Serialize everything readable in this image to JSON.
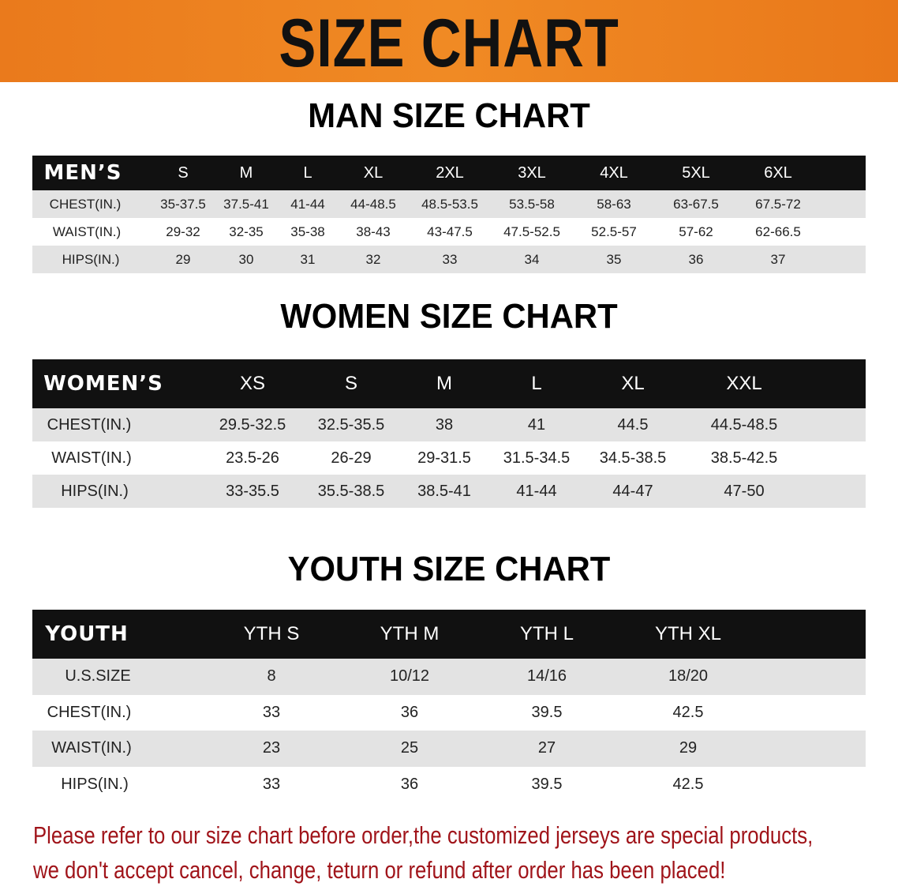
{
  "banner_title": "SIZE CHART",
  "men": {
    "title": "MAN SIZE CHART",
    "header": [
      "MEN’S",
      "S",
      "M",
      "L",
      "XL",
      "2XL",
      "3XL",
      "4XL",
      "5XL",
      "6XL"
    ],
    "rows": [
      [
        "CHEST(IN.)",
        "35-37.5",
        "37.5-41",
        "41-44",
        "44-48.5",
        "48.5-53.5",
        "53.5-58",
        "58-63",
        "63-67.5",
        "67.5-72"
      ],
      [
        "WAIST(IN.)",
        "29-32",
        "32-35",
        "35-38",
        "38-43",
        "43-47.5",
        "47.5-52.5",
        "52.5-57",
        "57-62",
        "62-66.5"
      ],
      [
        "HIPS(IN.)",
        "29",
        "30",
        "31",
        "32",
        "33",
        "34",
        "35",
        "36",
        "37"
      ]
    ]
  },
  "women": {
    "title": "WOMEN SIZE CHART",
    "header": [
      "WOMEN’S",
      "XS",
      "S",
      "M",
      "L",
      "XL",
      "XXL"
    ],
    "rows": [
      [
        "CHEST(IN.)",
        "29.5-32.5",
        "32.5-35.5",
        "38",
        "41",
        "44.5",
        "44.5-48.5"
      ],
      [
        "WAIST(IN.)",
        "23.5-26",
        "26-29",
        "29-31.5",
        "31.5-34.5",
        "34.5-38.5",
        "38.5-42.5"
      ],
      [
        "HIPS(IN.)",
        "33-35.5",
        "35.5-38.5",
        "38.5-41",
        "41-44",
        "44-47",
        "47-50"
      ]
    ]
  },
  "youth": {
    "title": "YOUTH SIZE CHART",
    "header": [
      "YOUTH",
      "YTH S",
      "YTH M",
      "YTH L",
      "YTH XL"
    ],
    "rows": [
      [
        "U.S.SIZE",
        "8",
        "10/12",
        "14/16",
        "18/20"
      ],
      [
        "CHEST(IN.)",
        "33",
        "36",
        "39.5",
        "42.5"
      ],
      [
        "WAIST(IN.)",
        "23",
        "25",
        "27",
        "29"
      ],
      [
        "HIPS(IN.)",
        "33",
        "36",
        "39.5",
        "42.5"
      ]
    ]
  },
  "notice": {
    "line1": "Please refer to our size chart before order,the customized jerseys are special products,",
    "line2": "we don't accept cancel, change, teturn or refund after order has been placed!"
  },
  "colors": {
    "banner": "#ea7a1c",
    "header_row": "#111111",
    "stripe": "#e3e3e3",
    "notice": "#a0141a"
  }
}
